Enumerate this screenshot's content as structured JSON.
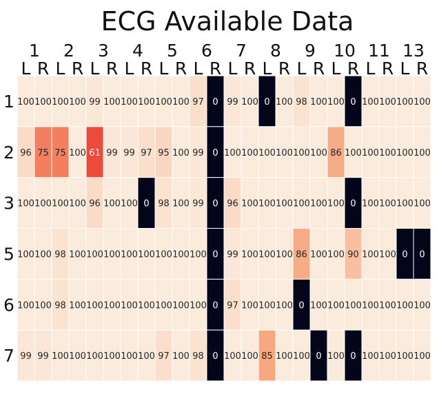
{
  "chart_data": {
    "type": "heatmap",
    "title": "ECG Available Data",
    "subject_labels": [
      "1",
      "2",
      "3",
      "4",
      "5",
      "6",
      "7",
      "8",
      "9",
      "10",
      "11",
      "13"
    ],
    "side_labels": [
      "L",
      "R",
      "L",
      "R",
      "L",
      "R",
      "L",
      "R",
      "L",
      "R",
      "L",
      "R",
      "L",
      "R",
      "L",
      "R",
      "L",
      "R",
      "L",
      "R",
      "L",
      "R",
      "L",
      "R"
    ],
    "row_labels": [
      "1",
      "2",
      "3",
      "5",
      "6",
      "7"
    ],
    "values": [
      [
        100,
        100,
        100,
        100,
        99,
        100,
        100,
        100,
        100,
        100,
        97,
        0,
        99,
        100,
        0,
        100,
        98,
        100,
        100,
        0,
        100,
        100,
        100,
        100
      ],
      [
        96,
        75,
        75,
        100,
        61,
        99,
        99,
        97,
        95,
        100,
        99,
        0,
        100,
        100,
        100,
        100,
        100,
        100,
        86,
        100,
        100,
        100,
        100,
        100
      ],
      [
        100,
        100,
        100,
        100,
        96,
        100,
        100,
        0,
        98,
        100,
        99,
        0,
        96,
        100,
        100,
        100,
        100,
        100,
        100,
        0,
        100,
        100,
        100,
        100
      ],
      [
        100,
        100,
        98,
        100,
        100,
        100,
        100,
        100,
        100,
        100,
        100,
        0,
        99,
        100,
        100,
        100,
        86,
        100,
        100,
        90,
        100,
        100,
        0,
        0
      ],
      [
        100,
        100,
        98,
        100,
        100,
        100,
        100,
        100,
        100,
        100,
        100,
        0,
        97,
        100,
        100,
        100,
        0,
        100,
        100,
        100,
        100,
        100,
        100,
        100
      ],
      [
        99,
        99,
        100,
        100,
        100,
        100,
        100,
        100,
        97,
        100,
        98,
        0,
        100,
        100,
        85,
        100,
        100,
        0,
        100,
        0,
        100,
        100,
        100,
        100
      ]
    ],
    "color_range": [
      0,
      100
    ],
    "colormap": "rocket",
    "grid": true
  }
}
